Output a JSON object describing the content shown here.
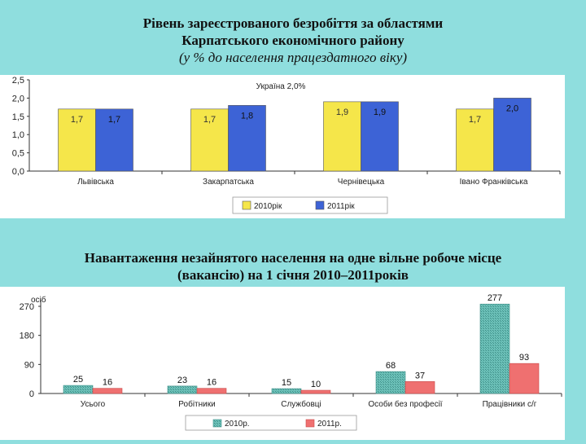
{
  "chart1": {
    "title_line1": "Рівень зареєстрованого безробіття за областями",
    "title_line2": "Карпатського економічного району",
    "title_line3": "(у % до населення працездатного віку)",
    "note": "Україна 2,0%",
    "colors": {
      "s2010": "#f5e64a",
      "s2011": "#3d63d6"
    }
  },
  "chart2": {
    "title_line1": "Навантаження незайнятого населення на одне вільне робоче місце",
    "title_line2": "(вакансію) на 1 січня 2010–2011років",
    "unit_label": "осіб",
    "colors": {
      "s2010": "#6cc0b8",
      "s2011": "#ef7070"
    }
  },
  "chart_data": [
    {
      "type": "bar",
      "title": "Рівень зареєстрованого безробіття за областями Карпатського економічного району (у % до населення працездатного віку)",
      "categories": [
        "Львівська",
        "Закарпатська",
        "Чернівецька",
        "Івано Франківська"
      ],
      "series": [
        {
          "name": "2010рік",
          "values": [
            1.7,
            1.7,
            1.9,
            1.7
          ],
          "labels": [
            "1,7",
            "1,7",
            "1,9",
            "1,7"
          ]
        },
        {
          "name": "2011рік",
          "values": [
            1.7,
            1.8,
            1.9,
            2.0
          ],
          "labels": [
            "1,7",
            "1,8",
            "1,9",
            "2,0"
          ]
        }
      ],
      "ylim": [
        0,
        2.5
      ],
      "yticks": [
        "0,0",
        "0,5",
        "1,0",
        "1,5",
        "2,0",
        "2,5"
      ],
      "annotation": "Україна 2,0%",
      "legend": "bottom",
      "grid": false
    },
    {
      "type": "bar",
      "title": "Навантаження незайнятого населення на одне вільне робоче місце (вакансію) на 1 січня 2010–2011років",
      "categories": [
        "Усього",
        "Робітники",
        "Службовці",
        "Особи без професії",
        "Працівники с/г"
      ],
      "series": [
        {
          "name": "2010р.",
          "values": [
            25,
            23,
            15,
            68,
            277
          ]
        },
        {
          "name": "2011р.",
          "values": [
            16,
            16,
            10,
            37,
            93
          ]
        }
      ],
      "ylim": [
        0,
        270
      ],
      "yticks": [
        "0",
        "90",
        "180",
        "270"
      ],
      "ylabel": "осіб",
      "legend": "bottom",
      "grid": false
    }
  ]
}
